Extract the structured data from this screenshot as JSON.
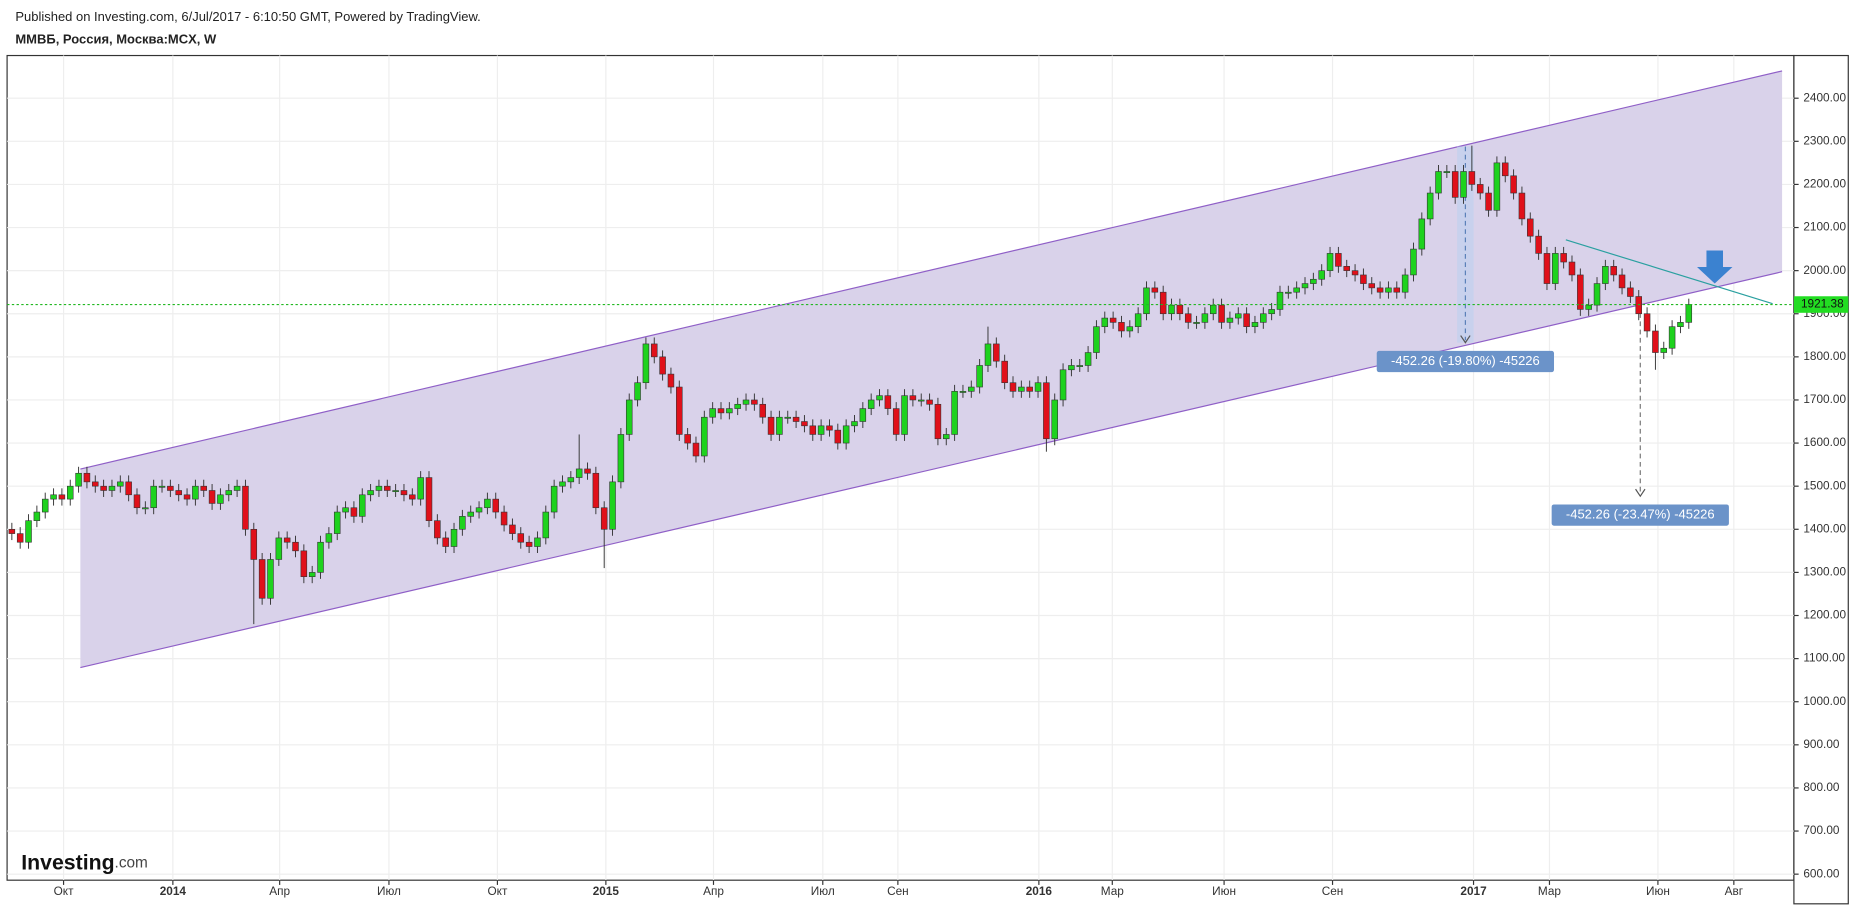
{
  "header": {
    "published": "Published on Investing.com, 6/Jul/2017 - 6:10:50 GMT, Powered by TradingView.",
    "symbol": "ММВБ, Россия, Москва:MCX, W"
  },
  "logo": {
    "brand": "Investing",
    "suffix": ".com"
  },
  "chart_data": {
    "type": "candlestick",
    "annotations": [
      "-452.26 (-19.80%) -45226",
      "-452.26 (-23.47%) -45226"
    ],
    "up_color": "#1ed21e",
    "down_color": "#e0101a",
    "grid": true,
    "xlim": [
      -0.57,
      213.6
    ],
    "ylim": [
      586,
      2499
    ],
    "xticks": [
      {
        "value": 6.2,
        "label": "Окт"
      },
      {
        "value": 19.3,
        "label": "2014"
      },
      {
        "value": 32.1,
        "label": "Апр"
      },
      {
        "value": 45.2,
        "label": "Июл"
      },
      {
        "value": 58.2,
        "label": "Окт"
      },
      {
        "value": 71.2,
        "label": "2015"
      },
      {
        "value": 84.1,
        "label": "Апр"
      },
      {
        "value": 97.2,
        "label": "Июл"
      },
      {
        "value": 106.2,
        "label": "Сен"
      },
      {
        "value": 123.1,
        "label": "2016"
      },
      {
        "value": 131.9,
        "label": "Мар"
      },
      {
        "value": 145.3,
        "label": "Июн"
      },
      {
        "value": 158.3,
        "label": "Сен"
      },
      {
        "value": 175.2,
        "label": "2017"
      },
      {
        "value": 184.3,
        "label": "Мар"
      },
      {
        "value": 197.3,
        "label": "Июн"
      },
      {
        "value": 206.4,
        "label": "Авг"
      }
    ],
    "yticks": [
      {
        "value": 600,
        "label": "600.00"
      },
      {
        "value": 700,
        "label": "700.00"
      },
      {
        "value": 800,
        "label": "800.00"
      },
      {
        "value": 900,
        "label": "900.00"
      },
      {
        "value": 1000,
        "label": "1000.00"
      },
      {
        "value": 1100,
        "label": "1100.00"
      },
      {
        "value": 1200,
        "label": "1200.00"
      },
      {
        "value": 1300,
        "label": "1300.00"
      },
      {
        "value": 1400,
        "label": "1400.00"
      },
      {
        "value": 1500,
        "label": "1500.00"
      },
      {
        "value": 1600,
        "label": "1600.00"
      },
      {
        "value": 1700,
        "label": "1700.00"
      },
      {
        "value": 1800,
        "label": "1800.00"
      },
      {
        "value": 1900,
        "label": "1900.00"
      },
      {
        "value": 2000,
        "label": "2000.00"
      },
      {
        "value": 2100,
        "label": "2100.00"
      },
      {
        "value": 2200,
        "label": "2200.00"
      },
      {
        "value": 2300,
        "label": "2300.00"
      },
      {
        "value": 2400,
        "label": "2400.00"
      }
    ],
    "x": [
      0,
      1,
      2,
      3,
      4,
      5,
      6,
      7,
      8,
      9,
      10,
      11,
      12,
      13,
      14,
      15,
      16,
      17,
      18,
      19,
      20,
      21,
      22,
      23,
      24,
      25,
      26,
      27,
      28,
      29,
      30,
      31,
      32,
      33,
      34,
      35,
      36,
      37,
      38,
      39,
      40,
      41,
      42,
      43,
      44,
      45,
      46,
      47,
      48,
      49,
      50,
      51,
      52,
      53,
      54,
      55,
      56,
      57,
      58,
      59,
      60,
      61,
      62,
      63,
      64,
      65,
      66,
      67,
      68,
      69,
      70,
      71,
      72,
      73,
      74,
      75,
      76,
      77,
      78,
      79,
      80,
      81,
      82,
      83,
      84,
      85,
      86,
      87,
      88,
      89,
      90,
      91,
      92,
      93,
      94,
      95,
      96,
      97,
      98,
      99,
      100,
      101,
      102,
      103,
      104,
      105,
      106,
      107,
      108,
      109,
      110,
      111,
      112,
      113,
      114,
      115,
      116,
      117,
      118,
      119,
      120,
      121,
      122,
      123,
      124,
      125,
      126,
      127,
      128,
      129,
      130,
      131,
      132,
      133,
      134,
      135,
      136,
      137,
      138,
      139,
      140,
      141,
      142,
      143,
      144,
      145,
      146,
      147,
      148,
      149,
      150,
      151,
      152,
      153,
      154,
      155,
      156,
      157,
      158,
      159,
      160,
      161,
      162,
      163,
      164,
      165,
      166,
      167,
      168,
      169,
      170,
      171,
      172,
      173,
      174,
      175,
      176,
      177,
      178,
      179,
      180,
      181,
      182,
      183,
      184,
      185,
      186,
      187,
      188,
      189,
      190,
      191,
      192,
      193,
      194,
      195,
      196,
      197,
      198,
      199,
      200,
      201
    ],
    "open": [
      1400,
      1390,
      1370,
      1420,
      1440,
      1470,
      1480,
      1470,
      1500,
      1530,
      1510,
      1500,
      1490,
      1500,
      1510,
      1480,
      1450,
      1450,
      1500,
      1500,
      1490,
      1480,
      1470,
      1500,
      1490,
      1460,
      1480,
      1490,
      1500,
      1400,
      1330,
      1240,
      1330,
      1380,
      1370,
      1350,
      1290,
      1300,
      1370,
      1390,
      1440,
      1450,
      1430,
      1480,
      1490,
      1500,
      1490,
      1490,
      1480,
      1470,
      1520,
      1420,
      1380,
      1360,
      1400,
      1430,
      1440,
      1450,
      1470,
      1440,
      1410,
      1390,
      1370,
      1360,
      1380,
      1440,
      1500,
      1510,
      1520,
      1540,
      1530,
      1450,
      1400,
      1510,
      1620,
      1700,
      1740,
      1830,
      1800,
      1760,
      1730,
      1620,
      1600,
      1570,
      1660,
      1680,
      1670,
      1680,
      1690,
      1700,
      1690,
      1660,
      1620,
      1660,
      1660,
      1650,
      1640,
      1620,
      1640,
      1630,
      1600,
      1640,
      1650,
      1680,
      1700,
      1710,
      1680,
      1620,
      1710,
      1700,
      1700,
      1690,
      1610,
      1620,
      1720,
      1720,
      1730,
      1780,
      1830,
      1790,
      1740,
      1720,
      1730,
      1720,
      1740,
      1610,
      1700,
      1770,
      1780,
      1780,
      1810,
      1870,
      1890,
      1880,
      1860,
      1870,
      1900,
      1960,
      1950,
      1900,
      1920,
      1900,
      1880,
      1880,
      1900,
      1920,
      1880,
      1890,
      1900,
      1870,
      1880,
      1900,
      1910,
      1950,
      1950,
      1960,
      1970,
      1980,
      2000,
      2040,
      2010,
      2000,
      1990,
      1970,
      1960,
      1950,
      1960,
      1950,
      1990,
      2050,
      2120,
      2180,
      2230,
      2230,
      2170,
      2230,
      2200,
      2180,
      2140,
      2250,
      2220,
      2180,
      2120,
      2080,
      2040,
      1970,
      2040,
      2020,
      1990,
      1910,
      1920,
      1970,
      2010,
      1990,
      1960,
      1940,
      1900,
      1860,
      1810,
      1820,
      1870,
      1880
    ],
    "high": [
      1415,
      1405,
      1435,
      1455,
      1485,
      1495,
      1495,
      1515,
      1545,
      1545,
      1525,
      1515,
      1515,
      1525,
      1525,
      1495,
      1465,
      1515,
      1515,
      1515,
      1505,
      1495,
      1515,
      1515,
      1505,
      1495,
      1505,
      1515,
      1515,
      1415,
      1345,
      1345,
      1395,
      1395,
      1385,
      1365,
      1315,
      1385,
      1405,
      1455,
      1465,
      1465,
      1495,
      1505,
      1515,
      1515,
      1505,
      1505,
      1495,
      1535,
      1535,
      1435,
      1395,
      1415,
      1445,
      1455,
      1465,
      1485,
      1485,
      1455,
      1425,
      1405,
      1385,
      1395,
      1455,
      1515,
      1525,
      1535,
      1620,
      1555,
      1545,
      1465,
      1525,
      1635,
      1715,
      1755,
      1845,
      1845,
      1815,
      1775,
      1745,
      1635,
      1615,
      1675,
      1695,
      1695,
      1695,
      1705,
      1715,
      1715,
      1705,
      1675,
      1675,
      1675,
      1675,
      1665,
      1655,
      1655,
      1655,
      1645,
      1655,
      1665,
      1695,
      1715,
      1725,
      1725,
      1695,
      1725,
      1725,
      1715,
      1715,
      1705,
      1635,
      1735,
      1735,
      1745,
      1795,
      1870,
      1845,
      1805,
      1755,
      1745,
      1745,
      1755,
      1755,
      1715,
      1785,
      1795,
      1795,
      1825,
      1885,
      1905,
      1905,
      1895,
      1885,
      1915,
      1975,
      1975,
      1965,
      1935,
      1935,
      1915,
      1895,
      1915,
      1935,
      1935,
      1905,
      1915,
      1915,
      1895,
      1915,
      1925,
      1965,
      1965,
      1975,
      1985,
      1995,
      2015,
      2055,
      2055,
      2025,
      2015,
      2005,
      1985,
      1975,
      1975,
      1975,
      2005,
      2065,
      2135,
      2195,
      2245,
      2245,
      2245,
      2245,
      2290,
      2215,
      2195,
      2265,
      2265,
      2235,
      2195,
      2135,
      2095,
      2055,
      2055,
      2055,
      2035,
      2005,
      1935,
      1985,
      2025,
      2025,
      2005,
      1975,
      1955,
      1915,
      1875,
      1835,
      1885,
      1895,
      1935
    ],
    "low": [
      1375,
      1355,
      1355,
      1405,
      1425,
      1455,
      1455,
      1455,
      1485,
      1495,
      1485,
      1475,
      1475,
      1485,
      1465,
      1435,
      1435,
      1435,
      1485,
      1475,
      1465,
      1455,
      1455,
      1475,
      1445,
      1445,
      1465,
      1475,
      1385,
      1180,
      1225,
      1225,
      1315,
      1355,
      1335,
      1275,
      1275,
      1285,
      1355,
      1375,
      1425,
      1415,
      1415,
      1465,
      1475,
      1475,
      1475,
      1465,
      1455,
      1455,
      1405,
      1365,
      1345,
      1345,
      1385,
      1415,
      1425,
      1435,
      1425,
      1395,
      1375,
      1355,
      1345,
      1345,
      1365,
      1425,
      1485,
      1495,
      1505,
      1515,
      1435,
      1310,
      1385,
      1495,
      1605,
      1685,
      1725,
      1785,
      1745,
      1715,
      1605,
      1585,
      1555,
      1555,
      1645,
      1655,
      1655,
      1665,
      1675,
      1675,
      1645,
      1605,
      1605,
      1645,
      1635,
      1625,
      1605,
      1605,
      1615,
      1585,
      1585,
      1625,
      1635,
      1665,
      1685,
      1665,
      1605,
      1605,
      1685,
      1685,
      1675,
      1595,
      1595,
      1605,
      1705,
      1705,
      1715,
      1765,
      1775,
      1725,
      1705,
      1705,
      1705,
      1705,
      1580,
      1595,
      1685,
      1755,
      1765,
      1765,
      1795,
      1855,
      1865,
      1845,
      1845,
      1855,
      1885,
      1935,
      1885,
      1885,
      1885,
      1865,
      1865,
      1865,
      1885,
      1865,
      1865,
      1875,
      1855,
      1855,
      1865,
      1885,
      1895,
      1935,
      1935,
      1945,
      1955,
      1965,
      1985,
      1995,
      1985,
      1975,
      1955,
      1945,
      1935,
      1935,
      1935,
      1935,
      1975,
      2035,
      2105,
      2165,
      2215,
      2155,
      2155,
      2185,
      2165,
      2125,
      2125,
      2205,
      2165,
      2105,
      2065,
      2025,
      1955,
      1955,
      2005,
      1975,
      1895,
      1895,
      1905,
      1955,
      1975,
      1945,
      1925,
      1885,
      1845,
      1770,
      1795,
      1805,
      1855,
      1865
    ],
    "close": [
      1390,
      1370,
      1420,
      1440,
      1470,
      1480,
      1470,
      1500,
      1530,
      1510,
      1500,
      1490,
      1500,
      1510,
      1480,
      1450,
      1450,
      1500,
      1500,
      1490,
      1480,
      1470,
      1500,
      1490,
      1460,
      1480,
      1490,
      1500,
      1400,
      1330,
      1240,
      1330,
      1380,
      1370,
      1350,
      1290,
      1300,
      1370,
      1390,
      1440,
      1450,
      1430,
      1480,
      1490,
      1500,
      1490,
      1490,
      1480,
      1470,
      1520,
      1420,
      1380,
      1360,
      1400,
      1430,
      1440,
      1450,
      1470,
      1440,
      1410,
      1390,
      1370,
      1360,
      1380,
      1440,
      1500,
      1510,
      1520,
      1540,
      1530,
      1450,
      1400,
      1510,
      1620,
      1700,
      1740,
      1830,
      1800,
      1760,
      1730,
      1620,
      1600,
      1570,
      1660,
      1680,
      1670,
      1680,
      1690,
      1700,
      1690,
      1660,
      1620,
      1660,
      1660,
      1650,
      1640,
      1620,
      1640,
      1630,
      1600,
      1640,
      1650,
      1680,
      1700,
      1710,
      1680,
      1620,
      1710,
      1700,
      1700,
      1690,
      1610,
      1620,
      1720,
      1720,
      1730,
      1780,
      1830,
      1790,
      1740,
      1720,
      1730,
      1720,
      1740,
      1610,
      1700,
      1770,
      1780,
      1780,
      1810,
      1870,
      1890,
      1880,
      1860,
      1870,
      1900,
      1960,
      1950,
      1900,
      1920,
      1900,
      1880,
      1880,
      1900,
      1920,
      1880,
      1890,
      1900,
      1870,
      1880,
      1900,
      1910,
      1950,
      1950,
      1960,
      1970,
      1980,
      2000,
      2040,
      2010,
      2000,
      1990,
      1970,
      1960,
      1950,
      1960,
      1950,
      1990,
      2050,
      2120,
      2180,
      2230,
      2230,
      2170,
      2230,
      2200,
      2180,
      2140,
      2250,
      2220,
      2180,
      2120,
      2080,
      2040,
      1970,
      2040,
      2020,
      1990,
      1910,
      1920,
      1970,
      2010,
      1990,
      1960,
      1940,
      1900,
      1860,
      1810,
      1820,
      1870,
      1880,
      1921.38
    ]
  }
}
